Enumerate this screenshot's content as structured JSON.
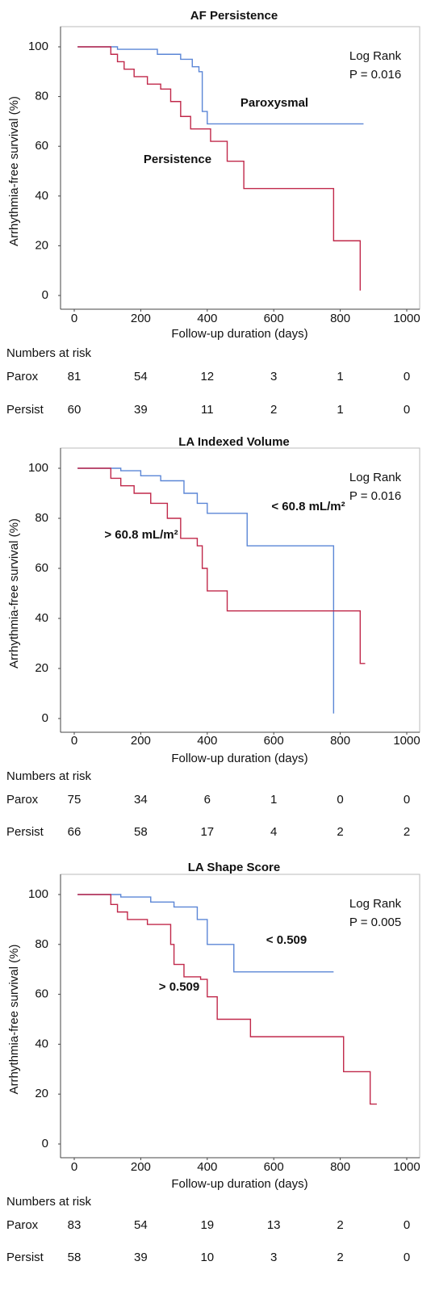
{
  "chart_data": [
    {
      "type": "step",
      "title": "AF Persistence",
      "x_label": "Follow-up duration (days)",
      "y_label": "Arrhythmia-free survival (%)",
      "xlim": [
        0,
        1000
      ],
      "xticks": [
        0,
        200,
        400,
        600,
        800,
        1000
      ],
      "ylim": [
        0,
        100
      ],
      "yticks": [
        0,
        20,
        40,
        60,
        80,
        100
      ],
      "annotations": [
        "Log Rank",
        "P = 0.016"
      ],
      "series": [
        {
          "name": "Paroxysmal",
          "color": "#5b86d6",
          "x": [
            10,
            130,
            250,
            320,
            355,
            375,
            385,
            400,
            870
          ],
          "values": [
            100,
            99,
            97,
            95,
            92,
            90,
            74,
            69,
            69
          ]
        },
        {
          "name": "Persistence",
          "color": "#c0284a",
          "x": [
            10,
            110,
            130,
            150,
            180,
            220,
            260,
            290,
            320,
            350,
            410,
            460,
            510,
            780,
            860
          ],
          "values": [
            100,
            97,
            94,
            91,
            88,
            85,
            83,
            78,
            72,
            67,
            62,
            54,
            43,
            22,
            2
          ]
        }
      ],
      "risk_table": {
        "title": "Numbers at risk",
        "rows": [
          {
            "label": "Parox",
            "values": [
              81,
              54,
              12,
              3,
              1,
              0
            ]
          },
          {
            "label": "Persist",
            "values": [
              60,
              39,
              11,
              2,
              1,
              0
            ]
          }
        ]
      }
    },
    {
      "type": "step",
      "title": "LA Indexed Volume",
      "x_label": "Follow-up duration (days)",
      "y_label": "Arrhythmia-free survival (%)",
      "xlim": [
        0,
        1000
      ],
      "xticks": [
        0,
        200,
        400,
        600,
        800,
        1000
      ],
      "ylim": [
        0,
        100
      ],
      "yticks": [
        0,
        20,
        40,
        60,
        80,
        100
      ],
      "annotations": [
        "Log Rank",
        "P = 0.016"
      ],
      "series": [
        {
          "name": "< 60.8 mL/m²",
          "color": "#5b86d6",
          "x": [
            10,
            140,
            200,
            260,
            330,
            370,
            400,
            520,
            780
          ],
          "values": [
            100,
            99,
            97,
            95,
            90,
            86,
            82,
            69,
            2
          ]
        },
        {
          "name": "> 60.8 mL/m²",
          "color": "#c0284a",
          "x": [
            10,
            110,
            140,
            180,
            230,
            280,
            320,
            370,
            385,
            400,
            460,
            860,
            875
          ],
          "values": [
            100,
            96,
            93,
            90,
            86,
            80,
            72,
            69,
            60,
            51,
            43,
            22,
            22
          ]
        }
      ],
      "risk_table": {
        "title": "Numbers at risk",
        "rows": [
          {
            "label": "Parox",
            "values": [
              75,
              34,
              6,
              1,
              0,
              0
            ]
          },
          {
            "label": "Persist",
            "values": [
              66,
              58,
              17,
              4,
              2,
              2
            ]
          }
        ]
      }
    },
    {
      "type": "step",
      "title": "LA Shape Score",
      "x_label": "Follow-up duration (days)",
      "y_label": "Arrhythmia-free survival (%)",
      "xlim": [
        0,
        1000
      ],
      "xticks": [
        0,
        200,
        400,
        600,
        800,
        1000
      ],
      "ylim": [
        0,
        100
      ],
      "yticks": [
        0,
        20,
        40,
        60,
        80,
        100
      ],
      "annotations": [
        "Log Rank",
        "P = 0.005"
      ],
      "series": [
        {
          "name": "< 0.509",
          "color": "#5b86d6",
          "x": [
            10,
            140,
            230,
            300,
            370,
            400,
            480,
            780
          ],
          "values": [
            100,
            99,
            97,
            95,
            90,
            80,
            69,
            69
          ]
        },
        {
          "name": "> 0.509",
          "color": "#c0284a",
          "x": [
            10,
            110,
            130,
            160,
            220,
            290,
            300,
            330,
            380,
            400,
            430,
            530,
            810,
            890,
            910
          ],
          "values": [
            100,
            96,
            93,
            90,
            88,
            80,
            72,
            67,
            66,
            59,
            50,
            43,
            29,
            16,
            16
          ]
        }
      ],
      "risk_table": {
        "title": "Numbers at risk",
        "rows": [
          {
            "label": "Parox",
            "values": [
              83,
              54,
              19,
              13,
              2,
              0
            ]
          },
          {
            "label": "Persist",
            "values": [
              58,
              39,
              10,
              3,
              2,
              0
            ]
          }
        ]
      }
    }
  ]
}
